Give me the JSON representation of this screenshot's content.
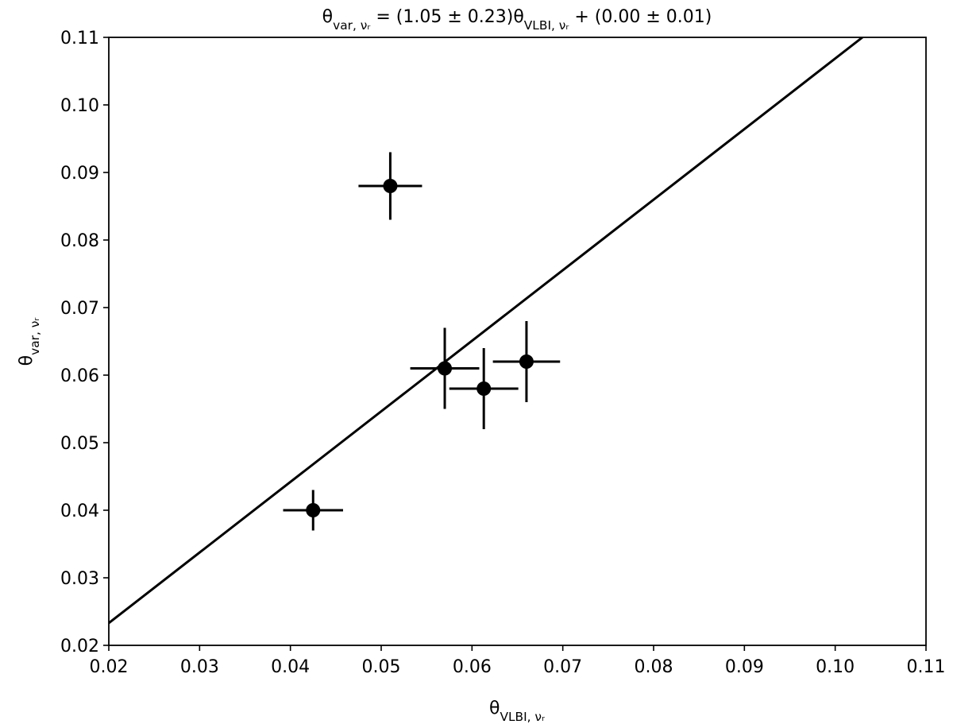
{
  "chart_data": {
    "type": "scatter",
    "title": [
      {
        "text": "θ"
      },
      {
        "text": "var, νᵣ",
        "baseline": "sub"
      },
      {
        "text": " = (1.05 ± 0.23)θ"
      },
      {
        "text": "VLBI, νᵣ",
        "baseline": "sub"
      },
      {
        "text": " + (0.00 ± 0.01)"
      }
    ],
    "xlabel": [
      {
        "text": "θ"
      },
      {
        "text": "VLBI, νᵣ",
        "baseline": "sub"
      }
    ],
    "ylabel": [
      {
        "text": "θ"
      },
      {
        "text": "var, νᵣ",
        "baseline": "sub"
      }
    ],
    "x": [
      0.0425,
      0.051,
      0.057,
      0.0613,
      0.066
    ],
    "xerr": [
      0.0033,
      0.0035,
      0.0038,
      0.0038,
      0.0037
    ],
    "y": [
      0.04,
      0.088,
      0.061,
      0.058,
      0.062
    ],
    "yerr": [
      0.003,
      0.005,
      0.006,
      0.006,
      0.006
    ],
    "color": "#000000",
    "fit": {
      "x": [
        0.02,
        0.103
      ],
      "y": [
        0.0233,
        0.11
      ]
    },
    "xlim": [
      0.02,
      0.11
    ],
    "ylim": [
      0.02,
      0.11
    ],
    "xticks": [
      0.02,
      0.03,
      0.04,
      0.05,
      0.06,
      0.07,
      0.08,
      0.09,
      {
        "value": 0.1,
        "label": "0.10"
      },
      0.11
    ],
    "yticks": [
      0.02,
      0.03,
      0.04,
      0.05,
      0.06,
      0.07,
      0.08,
      0.09,
      {
        "value": 0.1,
        "label": "0.10"
      },
      0.11
    ]
  }
}
